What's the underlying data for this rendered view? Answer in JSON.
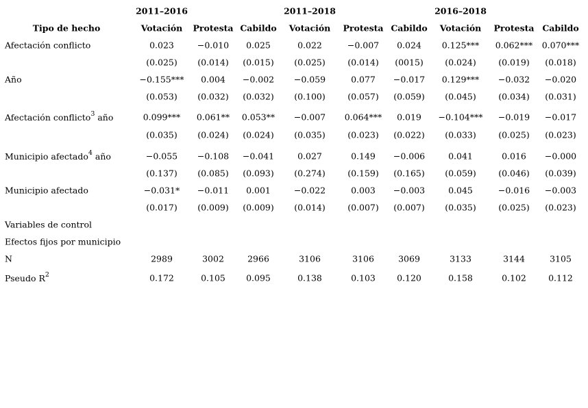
{
  "table": {
    "groups": [
      "2011–2016",
      "2011–2018",
      "2016–2018"
    ],
    "row_header": "Tipo de hecho",
    "columns": [
      "Votación",
      "Protesta",
      "Cabildo",
      "Votación",
      "Protesta",
      "Cabildo",
      "Votación",
      "Protesta",
      "Cabildo"
    ],
    "rows": [
      {
        "label": "Afectación conflicto",
        "cells": [
          "0.023",
          "−0.010",
          "0.025",
          "0.022",
          "−0.007",
          "0.024",
          "0.125***",
          "0.062***",
          "0.070***"
        ]
      },
      {
        "cells": [
          "(0.025)",
          "(0.014)",
          "(0.015)",
          "(0.025)",
          "(0.014)",
          "(0015)",
          "(0.024)",
          "(0.019)",
          "(0.018)"
        ]
      },
      {
        "label": "Año",
        "cells": [
          "−0.155***",
          "0.004",
          "−0.002",
          "−0.059",
          "0.077",
          "−0.017",
          "0.129***",
          "−0.032",
          "−0.020"
        ]
      },
      {
        "cells": [
          "(0.053)",
          "(0.032)",
          "(0.032)",
          "(0.100)",
          "(0.057)",
          "(0.059)",
          "(0.045)",
          "(0.034)",
          "(0.031)"
        ]
      },
      {
        "label": {
          "text": "Afectación conflicto",
          "sup": "3",
          "rest": " año"
        },
        "cells": [
          "0.099***",
          "0.061**",
          "0.053**",
          "−0.007",
          "0.064***",
          "0.019",
          "−0.104***",
          "−0.019",
          "−0.017"
        ]
      },
      {
        "cells": [
          "(0.035)",
          "(0.024)",
          "(0.024)",
          "(0.035)",
          "(0.023)",
          "(0.022)",
          "(0.033)",
          "(0.025)",
          "(0.023)"
        ]
      },
      {
        "label": {
          "text": "Municipio afectado",
          "sup": "4",
          "rest": " año"
        },
        "cells": [
          "−0.055",
          "−0.108",
          "−0.041",
          "0.027",
          "0.149",
          "−0.006",
          "0.041",
          "0.016",
          "−0.000"
        ]
      },
      {
        "cells": [
          "(0.137)",
          "(0.085)",
          "(0.093)",
          "(0.274)",
          "(0.159)",
          "(0.165)",
          "(0.059)",
          "(0.046)",
          "(0.039)"
        ]
      },
      {
        "label": "Municipio afectado",
        "cells": [
          "−0.031*",
          "−0.011",
          "0.001",
          "−0.022",
          "0.003",
          "−0.003",
          "0.045",
          "−0.016",
          "−0.003"
        ]
      },
      {
        "cells": [
          "(0.017)",
          "(0.009)",
          "(0.009)",
          "(0.014)",
          "(0.007)",
          "(0.007)",
          "(0.035)",
          "(0.025)",
          "(0.023)"
        ]
      },
      {
        "label": "Variables de control"
      },
      {
        "label": "Efectos fijos por municipio"
      },
      {
        "label": "N",
        "cells": [
          "2989",
          "3002",
          "2966",
          "3106",
          "3106",
          "3069",
          "3133",
          "3144",
          "3105"
        ]
      },
      {
        "label": {
          "text": "Pseudo R",
          "sup": "2"
        },
        "cells": [
          "0.172",
          "0.105",
          "0.095",
          "0.138",
          "0.103",
          "0.120",
          "0.158",
          "0.102",
          "0.112"
        ]
      }
    ]
  }
}
